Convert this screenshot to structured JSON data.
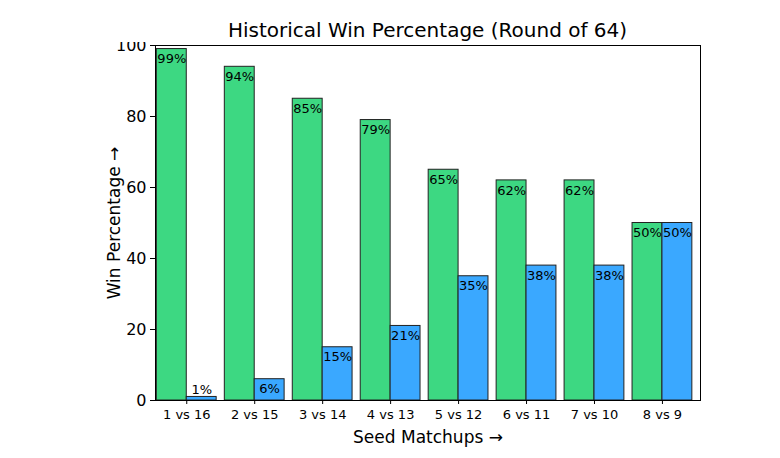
{
  "chart_data": {
    "type": "bar",
    "title": "Historical Win Percentage (Round of 64)",
    "xlabel": "Seed Matchups",
    "ylabel": "Win Percentage",
    "categories": [
      "1 vs 16",
      "2 vs 15",
      "3 vs 14",
      "4 vs 13",
      "5 vs 12",
      "6 vs 11",
      "7 vs 10",
      "8 vs 9"
    ],
    "series": [
      {
        "color": "#3dd882",
        "values": [
          99,
          94,
          85,
          79,
          65,
          62,
          62,
          50
        ],
        "value_labels": [
          "99%",
          "94%",
          "85%",
          "79%",
          "65%",
          "62%",
          "62%",
          "50%"
        ]
      },
      {
        "color": "#3aa8ff",
        "values": [
          1,
          6,
          15,
          21,
          35,
          38,
          38,
          50
        ],
        "value_labels": [
          "1%",
          "6%",
          "15%",
          "21%",
          "35%",
          "38%",
          "38%",
          "50%"
        ]
      }
    ],
    "ylim": [
      0,
      100
    ],
    "yticks": [
      0,
      20,
      40,
      60,
      80,
      100
    ],
    "data_labels": true
  }
}
